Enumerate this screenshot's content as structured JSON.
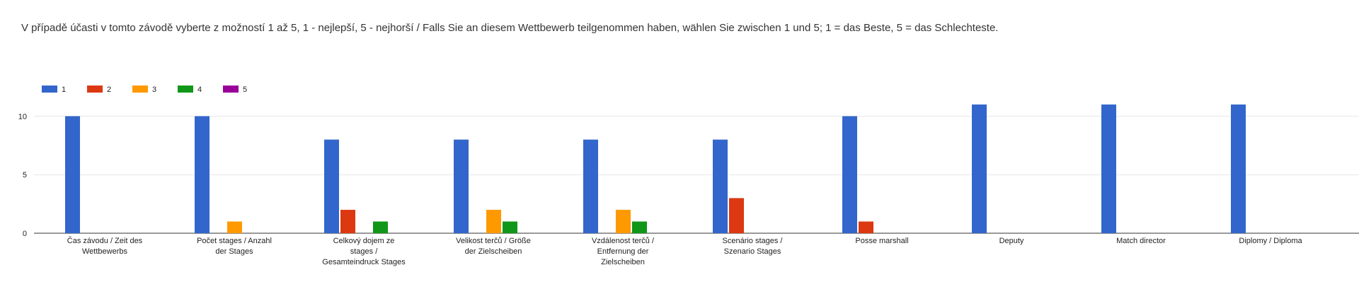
{
  "chart_data": {
    "type": "bar",
    "title": "V případě účasti v tomto závodě vyberte z možností 1 až 5, 1 - nejlepší, 5 - nejhorší /  Falls Sie an diesem Wettbewerb teilgenommen haben, wählen Sie zwischen 1 und 5; 1 = das Beste, 5 = das Schlechteste.",
    "categories": [
      "Čas závodu / Zeit des Wettbewerbs",
      "Počet stages / Anzahl der Stages",
      "Celkový dojem ze stages / Gesamteindruck Stages",
      "Velikost terčů / Größe der Zielscheiben",
      "Vzdálenost terčů / Entfernung der Zielscheiben",
      "Scenário stages / Szenario Stages",
      "Posse marshall",
      "Deputy",
      "Match director",
      "Diplomy / Diploma"
    ],
    "series": [
      {
        "name": "1",
        "color": "#3366cc",
        "values": [
          10,
          10,
          8,
          8,
          8,
          8,
          10,
          11,
          11,
          11
        ]
      },
      {
        "name": "2",
        "color": "#dc3912",
        "values": [
          0,
          0,
          2,
          0,
          0,
          3,
          1,
          0,
          0,
          0
        ]
      },
      {
        "name": "3",
        "color": "#ff9900",
        "values": [
          0,
          1,
          0,
          2,
          2,
          0,
          0,
          0,
          0,
          0
        ]
      },
      {
        "name": "4",
        "color": "#109618",
        "values": [
          0,
          0,
          1,
          1,
          1,
          0,
          0,
          0,
          0,
          0
        ]
      },
      {
        "name": "5",
        "color": "#990099",
        "values": [
          0,
          0,
          0,
          0,
          0,
          0,
          0,
          0,
          0,
          0
        ]
      }
    ],
    "ylim": [
      0,
      12.5
    ],
    "yticks": [
      0,
      5,
      10
    ],
    "grid": true,
    "legend": "top"
  }
}
